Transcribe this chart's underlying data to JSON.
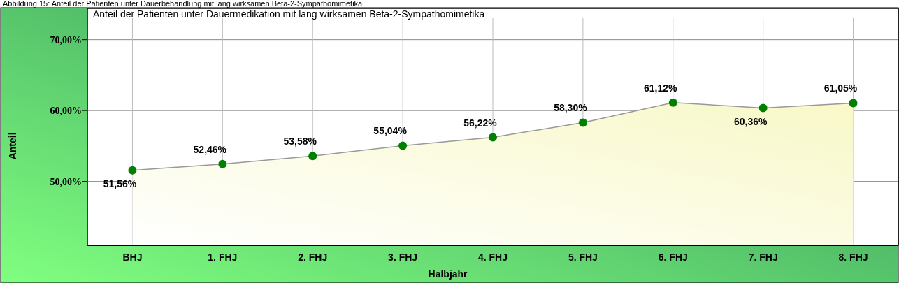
{
  "chart_data": {
    "type": "area",
    "title": "Anteil der Patienten unter Dauermedikation mit lang wirksamen Beta-2-Sympathomimetika",
    "annotations": [
      "Abbildung 15: Anteil der Patienten unter Dauerbehandlung mit lang wirksamen Beta-2-Sympathomimetika"
    ],
    "xlabel": "Halbjahr",
    "ylabel": "Anteil",
    "categories": [
      "BHJ",
      "1. FHJ",
      "2. FHJ",
      "3. FHJ",
      "4. FHJ",
      "5. FHJ",
      "6. FHJ",
      "7. FHJ",
      "8. FHJ"
    ],
    "series": [
      {
        "color": "#008000",
        "values": [
          51.56,
          52.46,
          53.58,
          55.04,
          56.22,
          58.3,
          61.12,
          60.36,
          61.05
        ],
        "value_labels": [
          "51,56%",
          "52,46%",
          "53,58%",
          "55,04%",
          "56,22%",
          "58,30%",
          "61,12%",
          "60,36%",
          "61,05%"
        ]
      }
    ],
    "ylim": [
      41,
      74.4
    ],
    "yticks": [
      {
        "value": 50,
        "label": "50,00%"
      },
      {
        "value": 60,
        "label": "60,00%"
      },
      {
        "value": 70,
        "label": "70,00%"
      }
    ],
    "grid": true,
    "marker": "circle"
  }
}
